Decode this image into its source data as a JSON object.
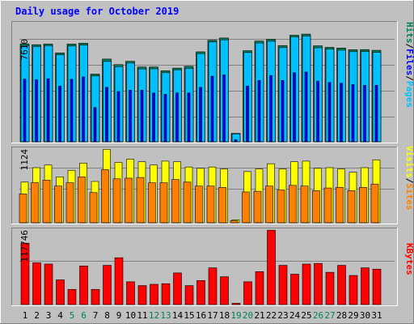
{
  "title": "Daily usage for October 2019",
  "colors": {
    "background": "#C0C0C0",
    "title": "#0000FF",
    "hits": "#00805C",
    "files": "#0000FF",
    "pages": "#00C0FF",
    "visits": "#FFFF00",
    "sites": "#FF8000",
    "kbytes": "#FF0000",
    "weekend_day": "#00805C",
    "weekday": "#000000"
  },
  "chart_data": [
    {
      "type": "bar",
      "title": "Daily usage for October 2019",
      "ymax_label": "7610",
      "ylim": [
        0,
        7610
      ],
      "legend": [
        "Pages",
        "Files",
        "Hits"
      ],
      "legend_separator": "/",
      "categories": [
        "1",
        "2",
        "3",
        "4",
        "5",
        "6",
        "7",
        "8",
        "9",
        "10",
        "11",
        "12",
        "13",
        "14",
        "15",
        "16",
        "17",
        "18",
        "19",
        "20",
        "21",
        "22",
        "23",
        "24",
        "25",
        "26",
        "27",
        "28",
        "29",
        "30",
        "31"
      ],
      "weekend_days": [
        "5",
        "6",
        "12",
        "13",
        "19",
        "20",
        "26",
        "27"
      ],
      "series": [
        {
          "name": "Hits",
          "values": [
            7020,
            6960,
            7010,
            6370,
            7010,
            7070,
            4850,
            5930,
            5530,
            5770,
            5360,
            5360,
            5090,
            5280,
            5410,
            6450,
            7280,
            7440,
            600,
            6530,
            7220,
            7350,
            6900,
            7640,
            7720,
            6880,
            6770,
            6720,
            6600,
            6610,
            6560
          ]
        },
        {
          "name": "Files",
          "values": [
            6900,
            6830,
            6890,
            6240,
            6870,
            6930,
            4720,
            5760,
            5380,
            5640,
            5220,
            5230,
            4950,
            5160,
            5260,
            6320,
            7160,
            7310,
            560,
            6400,
            7080,
            7210,
            6750,
            7510,
            7580,
            6740,
            6640,
            6570,
            6460,
            6470,
            6410
          ]
        },
        {
          "name": "Pages",
          "values": [
            4500,
            4450,
            4520,
            4000,
            4480,
            4650,
            2450,
            3900,
            3600,
            3700,
            3700,
            3500,
            3400,
            3500,
            3500,
            3900,
            4700,
            4800,
            150,
            4000,
            4400,
            4750,
            4400,
            4950,
            5000,
            4350,
            4250,
            4200,
            4100,
            4050,
            4050
          ]
        }
      ]
    },
    {
      "type": "bar",
      "ymax_label": "1124",
      "ylim": [
        0,
        1124
      ],
      "legend": [
        "Sites",
        "Visits"
      ],
      "legend_separator": "/",
      "categories": [
        "1",
        "2",
        "3",
        "4",
        "5",
        "6",
        "7",
        "8",
        "9",
        "10",
        "11",
        "12",
        "13",
        "14",
        "15",
        "16",
        "17",
        "18",
        "19",
        "20",
        "21",
        "22",
        "23",
        "24",
        "25",
        "26",
        "27",
        "28",
        "29",
        "30",
        "31"
      ],
      "series": [
        {
          "name": "Visits",
          "values": [
            620,
            840,
            880,
            700,
            800,
            910,
            630,
            1120,
            920,
            970,
            930,
            880,
            940,
            930,
            850,
            830,
            850,
            820,
            45,
            780,
            820,
            900,
            820,
            930,
            940,
            830,
            840,
            820,
            770,
            840,
            960
          ]
        },
        {
          "name": "Sites",
          "values": [
            440,
            610,
            650,
            560,
            610,
            700,
            460,
            810,
            670,
            680,
            690,
            610,
            610,
            660,
            620,
            560,
            560,
            540,
            30,
            470,
            480,
            560,
            500,
            570,
            560,
            490,
            530,
            540,
            490,
            540,
            590
          ]
        }
      ]
    },
    {
      "type": "bar",
      "ymax_label": "117746",
      "ylim": [
        0,
        117746
      ],
      "legend": [
        "KBytes"
      ],
      "categories": [
        "1",
        "2",
        "3",
        "4",
        "5",
        "6",
        "7",
        "8",
        "9",
        "10",
        "11",
        "12",
        "13",
        "14",
        "15",
        "16",
        "17",
        "18",
        "19",
        "20",
        "21",
        "22",
        "23",
        "24",
        "25",
        "26",
        "27",
        "28",
        "29",
        "30",
        "31"
      ],
      "series": [
        {
          "name": "KBytes",
          "values": [
            97000,
            66000,
            64000,
            39000,
            24000,
            61000,
            24000,
            62000,
            74000,
            36000,
            30000,
            32000,
            33000,
            50000,
            30000,
            38000,
            58000,
            44000,
            2000,
            36000,
            52000,
            117500,
            62000,
            48000,
            64000,
            65000,
            51000,
            62000,
            46000,
            58000,
            56000
          ]
        }
      ]
    }
  ]
}
